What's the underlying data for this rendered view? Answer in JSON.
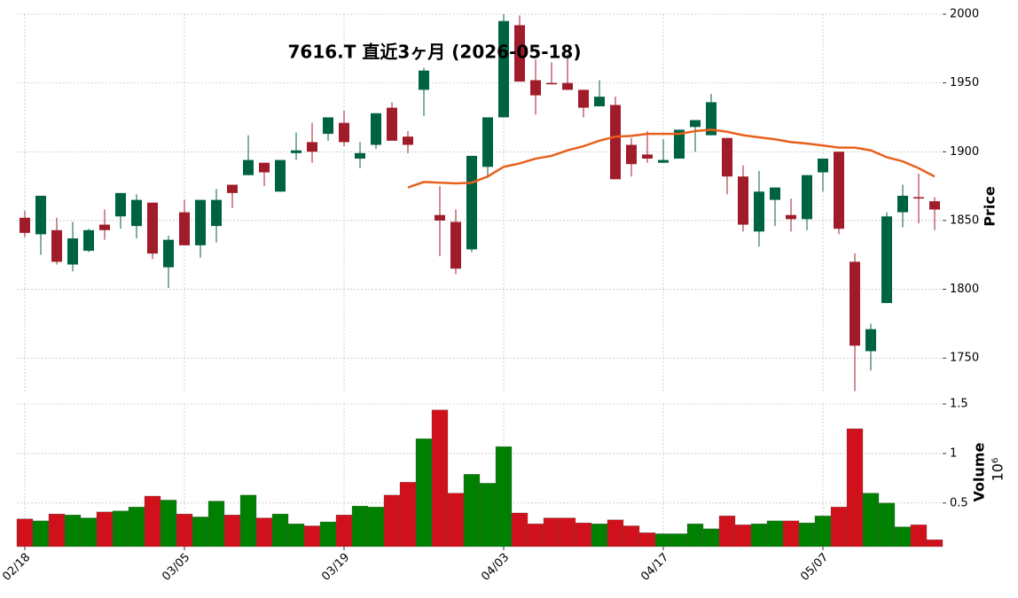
{
  "chart_data": {
    "type": "candlestick",
    "title": "7616.T  直近3ヶ月 (2026-05-18)",
    "ylabel": "Price",
    "categories": [
      "02/18",
      null,
      null,
      null,
      null,
      null,
      null,
      null,
      null,
      null,
      "03/05",
      null,
      null,
      null,
      null,
      null,
      null,
      null,
      null,
      null,
      "03/19",
      null,
      null,
      null,
      null,
      null,
      null,
      null,
      null,
      null,
      "04/03",
      null,
      null,
      null,
      null,
      null,
      null,
      null,
      null,
      null,
      "04/17",
      null,
      null,
      null,
      null,
      null,
      null,
      null,
      null,
      null,
      "05/07",
      null,
      null,
      null,
      null,
      null,
      null,
      null
    ],
    "open": [
      1852,
      1840,
      1843,
      1818,
      1828,
      1847,
      1853,
      1846,
      1863,
      1816,
      1856,
      1832,
      1846,
      1876,
      1883,
      1892,
      1871,
      1899,
      1907,
      1913,
      1921,
      1895,
      1905,
      1932,
      1911,
      1945,
      1854,
      1849,
      1829,
      1889,
      1925,
      1992,
      1952,
      1950,
      1950,
      1945,
      1933,
      1934,
      1905,
      1898,
      1892,
      1895,
      1918,
      1912,
      1910,
      1882,
      1842,
      1865,
      1854,
      1851,
      1885,
      1900,
      1820,
      1755,
      1790,
      1856,
      1867,
      1864
    ],
    "high": [
      1857,
      1868,
      1852,
      1849,
      1844,
      1858,
      1870,
      1869,
      1863,
      1839,
      1865,
      1865,
      1873,
      1876,
      1912,
      1892,
      1894,
      1914,
      1921,
      1925,
      1930,
      1907,
      1928,
      1936,
      1915,
      1961,
      1875,
      1858,
      1897,
      1925,
      2000,
      1999,
      1967,
      1965,
      1971,
      1945,
      1952,
      1940,
      1910,
      1915,
      1909,
      1916,
      1923,
      1942,
      1910,
      1890,
      1886,
      1874,
      1866,
      1883,
      1895,
      1900,
      1826,
      1775,
      1856,
      1876,
      1884,
      1867
    ],
    "low": [
      1838,
      1825,
      1818,
      1813,
      1827,
      1836,
      1844,
      1837,
      1822,
      1801,
      1832,
      1823,
      1834,
      1859,
      1883,
      1875,
      1871,
      1894,
      1892,
      1908,
      1904,
      1888,
      1902,
      1908,
      1899,
      1926,
      1824,
      1811,
      1827,
      1881,
      1925,
      1951,
      1927,
      1949,
      1945,
      1925,
      1933,
      1880,
      1882,
      1892,
      1892,
      1895,
      1900,
      1912,
      1869,
      1842,
      1831,
      1846,
      1842,
      1843,
      1871,
      1840,
      1726,
      1741,
      1790,
      1845,
      1848,
      1843
    ],
    "close": [
      1841,
      1868,
      1820,
      1837,
      1843,
      1843,
      1870,
      1865,
      1826,
      1836,
      1832,
      1865,
      1865,
      1870,
      1894,
      1885,
      1894,
      1901,
      1900,
      1925,
      1907,
      1899,
      1928,
      1908,
      1905,
      1959,
      1850,
      1815,
      1897,
      1925,
      1995,
      1951,
      1941,
      1949,
      1945,
      1932,
      1940,
      1880,
      1891,
      1895,
      1894,
      1916,
      1923,
      1936,
      1882,
      1847,
      1871,
      1874,
      1851,
      1883,
      1895,
      1844,
      1759,
      1771,
      1853,
      1868,
      1866,
      1858
    ],
    "up_color": "#006340",
    "down_color": "#a01c2a",
    "ylim": [
      1725,
      2000
    ],
    "yticks": [
      1750,
      1800,
      1850,
      1900,
      1950,
      2000
    ],
    "grid": true,
    "moving_average": {
      "color": "#e8601c",
      "values": [
        null,
        null,
        null,
        null,
        null,
        null,
        null,
        null,
        null,
        null,
        null,
        null,
        null,
        null,
        null,
        null,
        null,
        null,
        null,
        null,
        null,
        null,
        null,
        null,
        1874,
        1878,
        1877.5,
        1877,
        1877.5,
        1882,
        1889,
        1891.5,
        1895,
        1897,
        1901,
        1904,
        1908,
        1911,
        1911.5,
        1913,
        1913,
        1913,
        1915,
        1916,
        1914.5,
        1912,
        1910.5,
        1909,
        1907,
        1906,
        1904.5,
        1903,
        1903,
        1901,
        1896,
        1893,
        1888,
        1882
      ]
    },
    "volume": {
      "label": "Volume",
      "multiplier_label": "10⁶",
      "up_color": "#008000",
      "down_color": "#d0101a",
      "values": [
        0.34,
        0.32,
        0.39,
        0.38,
        0.35,
        0.41,
        0.42,
        0.46,
        0.57,
        0.53,
        0.39,
        0.36,
        0.52,
        0.38,
        0.58,
        0.35,
        0.39,
        0.29,
        0.27,
        0.31,
        0.38,
        0.47,
        0.46,
        0.58,
        0.71,
        1.15,
        1.44,
        0.6,
        0.79,
        0.7,
        1.07,
        0.4,
        0.29,
        0.35,
        0.35,
        0.3,
        0.29,
        0.33,
        0.27,
        0.2,
        0.19,
        0.19,
        0.29,
        0.24,
        0.37,
        0.28,
        0.29,
        0.32,
        0.32,
        0.3,
        0.37,
        0.46,
        1.25,
        0.6,
        0.5,
        0.26,
        0.28,
        0.13
      ],
      "ylim": [
        0.06,
        1.5
      ],
      "yticks": [
        0.5,
        1.0,
        1.5
      ]
    }
  }
}
